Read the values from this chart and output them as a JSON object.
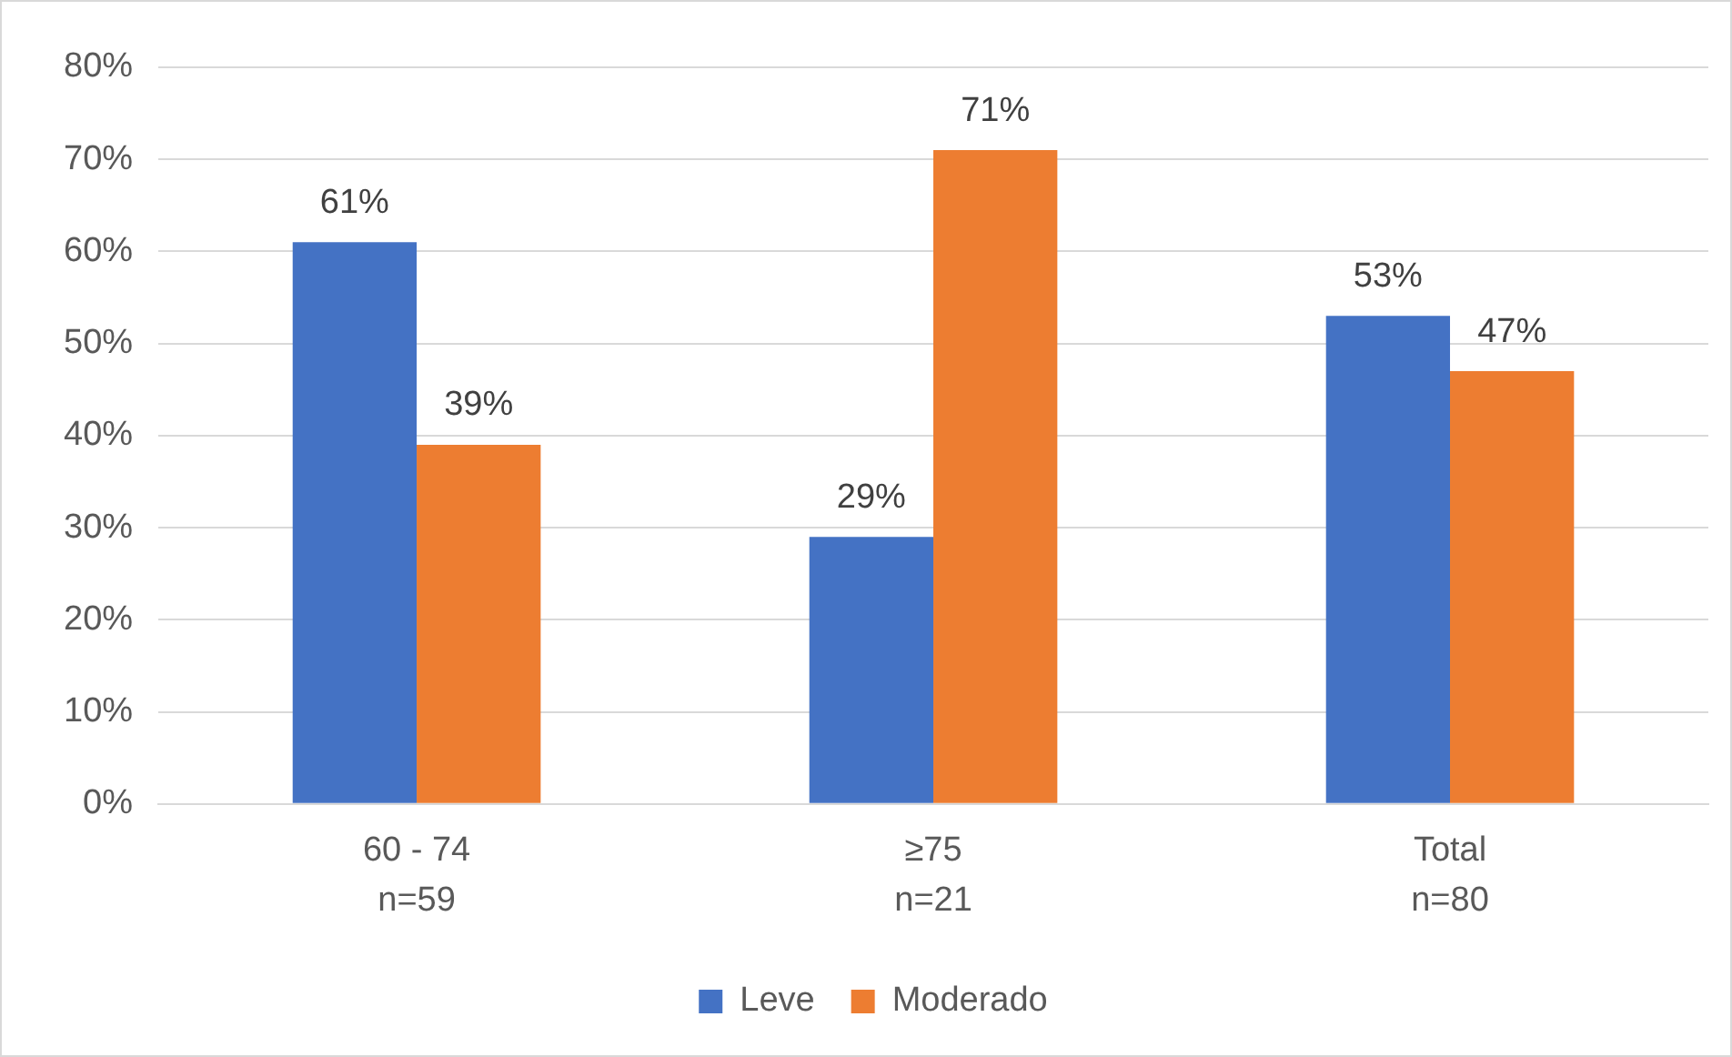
{
  "chart_data": {
    "type": "bar",
    "categories": [
      "60 - 74\nn=59",
      "≥75\nn=21",
      "Total\nn=80"
    ],
    "series": [
      {
        "name": "Leve",
        "color": "#4472c4",
        "values": [
          61,
          29,
          53
        ],
        "value_labels": [
          "61%",
          "29%",
          "53%"
        ]
      },
      {
        "name": "Moderado",
        "color": "#ed7d31",
        "values": [
          39,
          71,
          47
        ],
        "value_labels": [
          "39%",
          "71%",
          "47%"
        ]
      }
    ],
    "ylim": [
      0,
      80
    ],
    "yticks": [
      {
        "value": 0,
        "label": "0%"
      },
      {
        "value": 10,
        "label": "10%"
      },
      {
        "value": 20,
        "label": "20%"
      },
      {
        "value": 30,
        "label": "30%"
      },
      {
        "value": 40,
        "label": "40%"
      },
      {
        "value": 50,
        "label": "50%"
      },
      {
        "value": 60,
        "label": "60%"
      },
      {
        "value": 70,
        "label": "70%"
      },
      {
        "value": 80,
        "label": "80%"
      }
    ],
    "grid": "y",
    "legend": "bottom"
  }
}
